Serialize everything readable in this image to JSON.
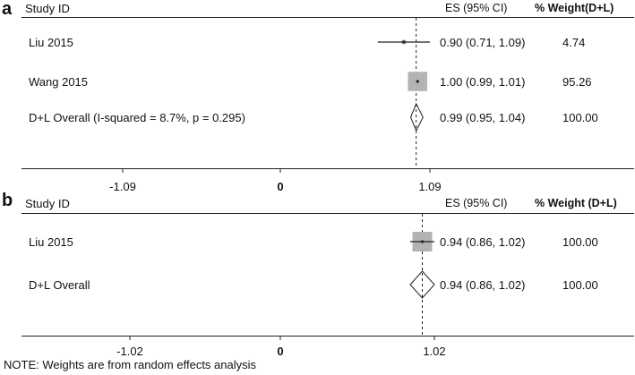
{
  "note": "NOTE: Weights are from random effects analysis",
  "chart_data": [
    {
      "type": "forest",
      "panel": "a",
      "header": {
        "study": "Study ID",
        "es": "ES (95% CI)",
        "weight": "% Weight(D+L)"
      },
      "xticks": [
        "-1.09",
        "0",
        "1.09"
      ],
      "rows": [
        {
          "label": "Liu 2015",
          "es": 0.9,
          "lower": 0.71,
          "upper": 1.09,
          "es_text": "0.90 (0.71, 1.09)",
          "weight": 4.74,
          "weight_text": "4.74",
          "kind": "study"
        },
        {
          "label": "Wang 2015",
          "es": 1.0,
          "lower": 0.99,
          "upper": 1.01,
          "es_text": "1.00 (0.99, 1.01)",
          "weight": 95.26,
          "weight_text": "95.26",
          "kind": "study"
        },
        {
          "label": "D+L Overall  (I-squared = 8.7%, p = 0.295)",
          "es": 0.99,
          "lower": 0.95,
          "upper": 1.04,
          "es_text": "0.99 (0.95, 1.04)",
          "weight": 100.0,
          "weight_text": "100.00",
          "kind": "overall"
        }
      ]
    },
    {
      "type": "forest",
      "panel": "b",
      "header": {
        "study": "Study ID",
        "es": "ES (95% CI)",
        "weight": "% Weight (D+L)"
      },
      "xticks": [
        "-1.02",
        "0",
        "1.02"
      ],
      "rows": [
        {
          "label": "Liu 2015",
          "es": 0.94,
          "lower": 0.86,
          "upper": 1.02,
          "es_text": "0.94 (0.86, 1.02)",
          "weight": 100.0,
          "weight_text": "100.00",
          "kind": "study"
        },
        {
          "label": "D+L Overall",
          "es": 0.94,
          "lower": 0.86,
          "upper": 1.02,
          "es_text": "0.94 (0.86, 1.02)",
          "weight": 100.0,
          "weight_text": "100.00",
          "kind": "overall"
        }
      ]
    }
  ]
}
